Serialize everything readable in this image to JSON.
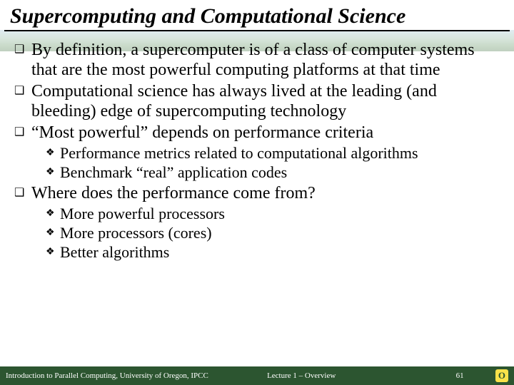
{
  "title": "Supercomputing and Computational Science",
  "bullets": [
    {
      "level": 1,
      "text": "By definition, a supercomputer is of a class of computer systems that are the most powerful computing platforms at that time"
    },
    {
      "level": 1,
      "text": "Computational science has always lived at the leading (and bleeding) edge of supercomputing technology"
    },
    {
      "level": 1,
      "text": "“Most powerful” depends on performance criteria"
    },
    {
      "level": 2,
      "text": "Performance metrics related to computational algorithms"
    },
    {
      "level": 2,
      "text": "Benchmark “real” application codes"
    },
    {
      "level": 1,
      "text": "Where does the performance come from?"
    },
    {
      "level": 2,
      "text": "More powerful processors"
    },
    {
      "level": 2,
      "text": "More processors (cores)"
    },
    {
      "level": 2,
      "text": "Better algorithms"
    }
  ],
  "footer": {
    "left": "Introduction to Parallel Computing, University of Oregon, IPCC",
    "mid": "Lecture 1 – Overview",
    "page": "61",
    "logo_letter": "O"
  },
  "markers": {
    "l1": "❑",
    "l2": "❖"
  },
  "colors": {
    "footer_bg": "#2c5530",
    "logo_bg": "#f9e24a"
  }
}
